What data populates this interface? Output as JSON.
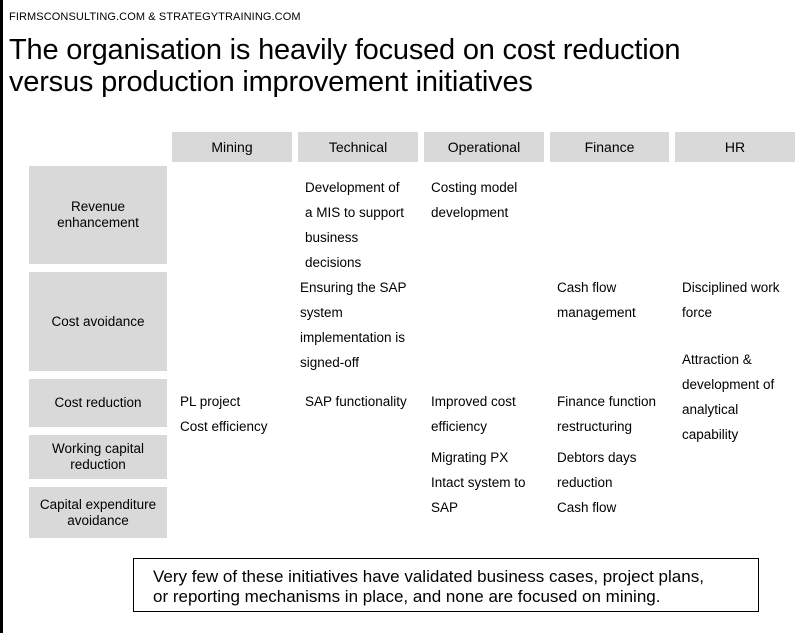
{
  "source": "FIRMSCONSULTING.COM & STRATEGYTRAINING.COM",
  "title_lines": [
    "The organisation is heavily focused on cost reduction",
    "versus production improvement initiatives"
  ],
  "columns": [
    "Mining",
    "Technical",
    "Operational",
    "Finance",
    "HR"
  ],
  "rows": [
    "Revenue enhancement",
    "Cost avoidance",
    "Cost reduction",
    "Working capital reduction",
    "Capital expenditure avoidance"
  ],
  "cells": {
    "revenue_technical": [
      "Development of",
      "a MIS to support",
      "business",
      "decisions"
    ],
    "revenue_operational": [
      "Costing model",
      "development"
    ],
    "avoidance_technical": [
      "Ensuring the SAP",
      "system",
      "implementation is",
      "signed-off"
    ],
    "avoidance_finance": [
      "Cash flow",
      "management"
    ],
    "avoidance_hr_1": [
      "Disciplined work",
      "force"
    ],
    "avoidance_hr_2": [
      "Attraction &",
      "development of",
      "analytical",
      "capability"
    ],
    "reduction_mining": [
      "PL project",
      "Cost efficiency"
    ],
    "reduction_technical": [
      "SAP functionality"
    ],
    "reduction_operational": [
      "Improved cost",
      "efficiency"
    ],
    "reduction_finance": [
      "Finance function",
      "restructuring"
    ],
    "wc_operational": [
      "Migrating PX",
      "Intact system to",
      "SAP"
    ],
    "wc_finance": [
      "Debtors days",
      "reduction",
      "Cash flow"
    ]
  },
  "callout_lines": [
    "Very few of these initiatives have validated business cases, project plans,",
    "or reporting mechanisms in place, and none are focused on mining."
  ]
}
